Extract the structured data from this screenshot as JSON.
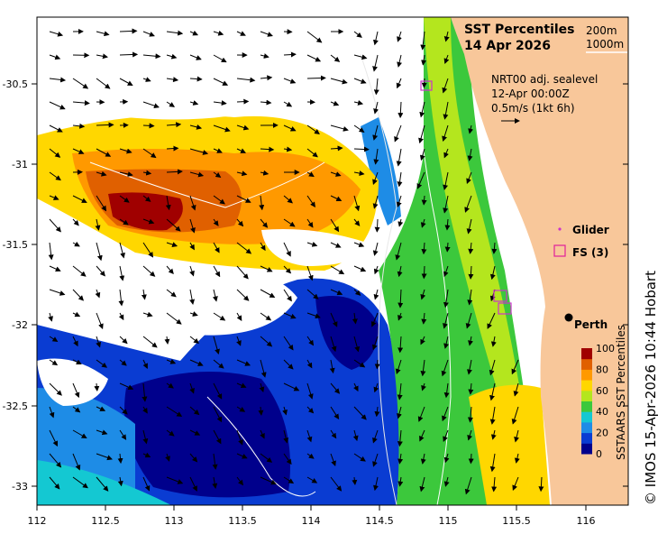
{
  "map": {
    "title": "SST Percentiles",
    "date": "14 Apr 2026",
    "isobaths": [
      "200m",
      "1000m"
    ],
    "current_source": "NRT00 adj. sealevel",
    "current_time": "12-Apr 00:00Z",
    "current_scale": "0.5m/s (1kt 6h)",
    "legend": {
      "glider_label": "Glider",
      "fs_label": "FS (3)",
      "glider_color": "#cc33cc",
      "fs_color": "#e0209a"
    },
    "city": "Perth",
    "colorbar": {
      "title": "SSTAARS SST Percentiles",
      "ticks": [
        "100",
        "80",
        "60",
        "40",
        "20",
        "0"
      ],
      "colors": [
        "#00008c",
        "#0a3cd2",
        "#1e8ce6",
        "#14c8d2",
        "#3cc83c",
        "#b4e61e",
        "#ffd700",
        "#ff9900",
        "#e06000",
        "#a00000"
      ]
    },
    "x_ticks": [
      "112",
      "112.5",
      "113",
      "113.5",
      "114",
      "114.5",
      "115",
      "115.5",
      "116"
    ],
    "y_ticks": [
      "-30.5",
      "-31",
      "-31.5",
      "-32",
      "-32.5",
      "-33"
    ],
    "copyright": "© IMOS 15-Apr-2026 10:44 Hobart",
    "land_color": "#f8c79a"
  }
}
